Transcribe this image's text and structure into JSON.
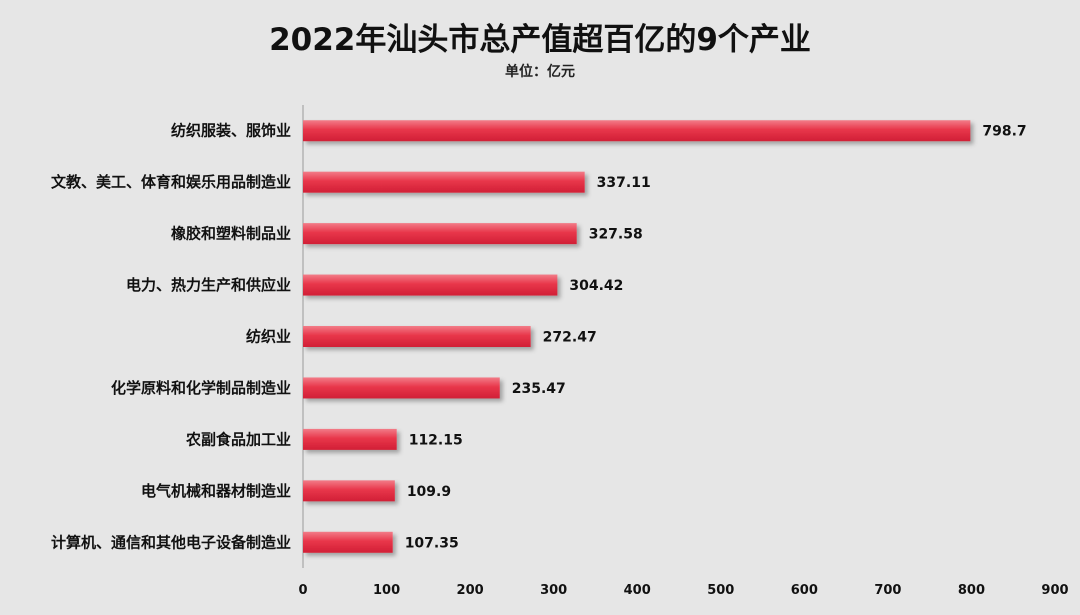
{
  "chart_data": {
    "type": "bar",
    "orientation": "horizontal",
    "title": "2022年汕头市总产值超百亿的9个产业",
    "subtitle": "单位：亿元",
    "categories": [
      "纺织服装、服饰业",
      "文教、美工、体育和娱乐用品制造业",
      "橡胶和塑料制品业",
      "电力、热力生产和供应业",
      "纺织业",
      "化学原料和化学制品制造业",
      "农副食品加工业",
      "电气机械和器材制造业",
      "计算机、通信和其他电子设备制造业"
    ],
    "values": [
      798.7,
      337.11,
      327.58,
      304.42,
      272.47,
      235.47,
      112.15,
      109.9,
      107.35
    ],
    "value_labels": [
      "798.7",
      "337.11",
      "327.58",
      "304.42",
      "272.47",
      "235.47",
      "112.15",
      "109.9",
      "107.35"
    ],
    "xlim": [
      0,
      900
    ],
    "x_ticks": [
      "0",
      "100",
      "200",
      "300",
      "400",
      "500",
      "600",
      "700",
      "800",
      "900"
    ],
    "grid": false,
    "bar_color": "#e8364a"
  }
}
